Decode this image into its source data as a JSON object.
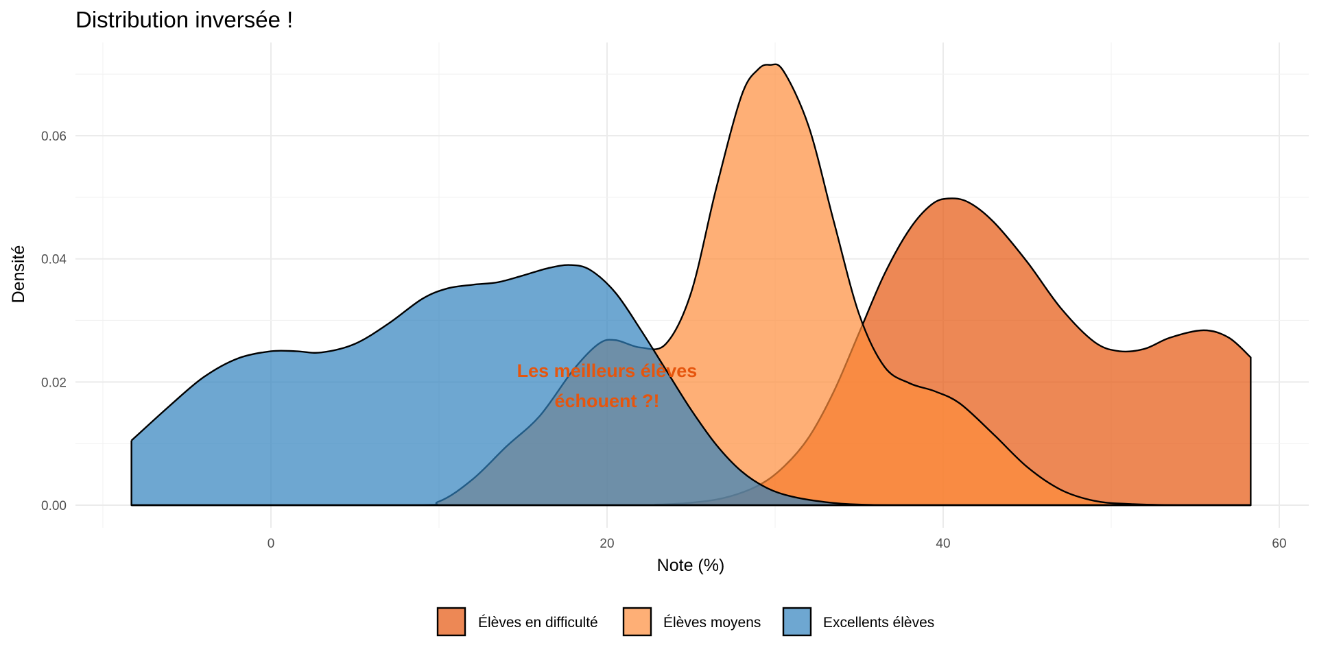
{
  "chart_data": {
    "type": "area",
    "subtype": "density",
    "title": "Distribution inversée !",
    "xlabel": "Note (%)",
    "ylabel": "Densité",
    "xlim": [
      -11,
      62
    ],
    "ylim": [
      0,
      0.073
    ],
    "x_ticks": [
      0,
      20,
      40,
      60
    ],
    "x_tick_labels": [
      "0",
      "20",
      "40",
      "60"
    ],
    "y_ticks": [
      0.0,
      0.02,
      0.04,
      0.06
    ],
    "y_tick_labels": [
      "0.00",
      "0.02",
      "0.04",
      "0.06"
    ],
    "grid": true,
    "legend_position": "bottom",
    "annotation": {
      "lines": [
        "Les meilleurs élèves",
        "échouent ?!"
      ],
      "x": 20,
      "y": 0.0195,
      "color": "#E6550D"
    },
    "fill_opacity": 0.7,
    "series": [
      {
        "name": "Élèves en difficulté",
        "color": "#E6550D",
        "x": [
          -8.3,
          20,
          23,
          25,
          27,
          29,
          30.5,
          32,
          33.5,
          35,
          36.5,
          38,
          39.3,
          40.3,
          41.5,
          43,
          45,
          47,
          49,
          50.5,
          52,
          53.5,
          55.5,
          57,
          58.3
        ],
        "values": [
          0,
          0,
          0.0001,
          0.0004,
          0.0012,
          0.0032,
          0.0062,
          0.011,
          0.0185,
          0.028,
          0.0375,
          0.0448,
          0.0488,
          0.0498,
          0.0492,
          0.046,
          0.0395,
          0.032,
          0.0265,
          0.025,
          0.0254,
          0.0272,
          0.0284,
          0.0272,
          0.024
        ]
      },
      {
        "name": "Élèves moyens",
        "color": "#FD8D3C",
        "x": [
          -8.3,
          8,
          10,
          12,
          14,
          16,
          18,
          19.5,
          20.5,
          22,
          23.5,
          25,
          26.5,
          28,
          29,
          29.7,
          30.5,
          32,
          33.5,
          35,
          36.5,
          38,
          39.5,
          41,
          43,
          45,
          47,
          49,
          51,
          54,
          58.3
        ],
        "values": [
          0,
          0,
          0.0006,
          0.0042,
          0.0095,
          0.0145,
          0.022,
          0.0262,
          0.0268,
          0.0256,
          0.0262,
          0.0345,
          0.0515,
          0.0665,
          0.0708,
          0.0715,
          0.0705,
          0.0615,
          0.046,
          0.031,
          0.0225,
          0.0198,
          0.0185,
          0.0165,
          0.0115,
          0.0062,
          0.0025,
          0.0007,
          0.0002,
          0,
          0
        ]
      },
      {
        "name": "Excellents élèves",
        "color": "#3182BD",
        "x": [
          -8.3,
          -6,
          -4,
          -2,
          0,
          1.5,
          3,
          5,
          7,
          9,
          10.5,
          12,
          13.5,
          15,
          16.5,
          17.8,
          19,
          20.5,
          22,
          23.5,
          25,
          26.5,
          28,
          29.5,
          31,
          33,
          35,
          38,
          42,
          50,
          58.3
        ],
        "values": [
          0.0105,
          0.0162,
          0.0208,
          0.0238,
          0.025,
          0.025,
          0.0248,
          0.0262,
          0.0295,
          0.0335,
          0.0352,
          0.0358,
          0.0362,
          0.0373,
          0.0385,
          0.039,
          0.0382,
          0.0345,
          0.0285,
          0.022,
          0.0155,
          0.0098,
          0.0055,
          0.0028,
          0.0014,
          0.0005,
          0.0001,
          0,
          0,
          0,
          0
        ]
      }
    ]
  }
}
